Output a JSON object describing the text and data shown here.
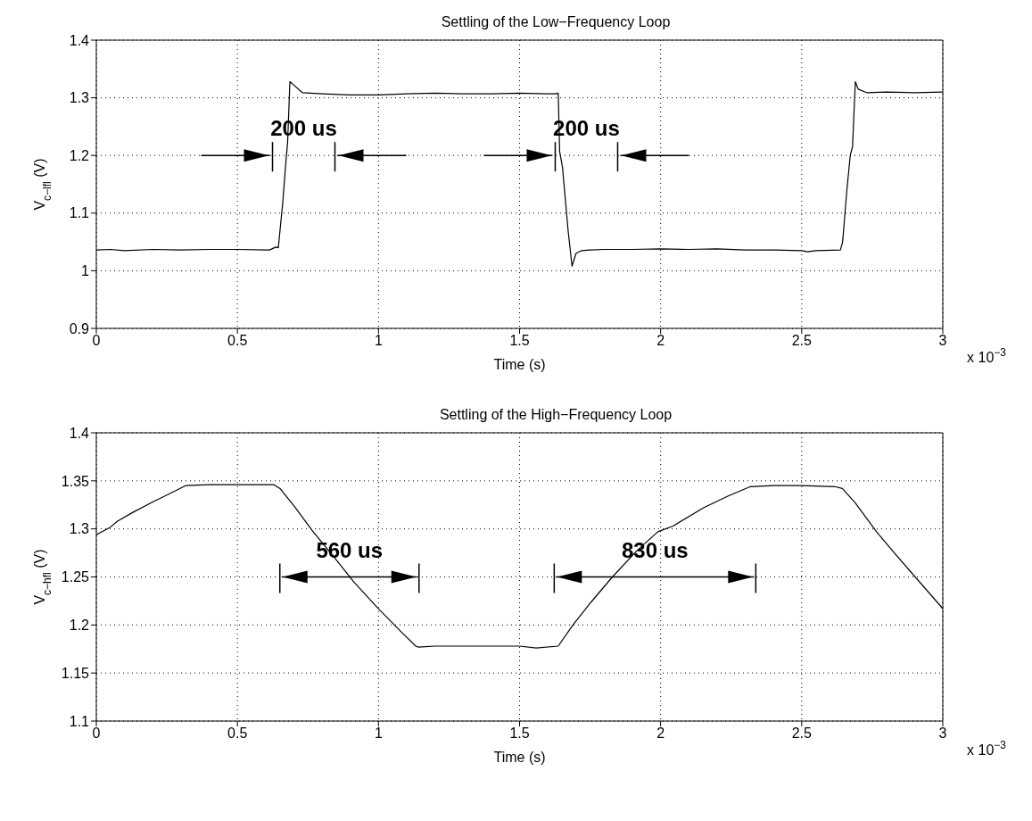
{
  "chart_data": [
    {
      "type": "line",
      "title": "Settling of the Low−Frequency Loop",
      "xlabel": "Time (s)",
      "ylabel": "V$_{c−lfl}$ (V)",
      "color": "#000000",
      "x": [
        0,
        0.05,
        0.1,
        0.2,
        0.3,
        0.4,
        0.5,
        0.6,
        0.614,
        0.636,
        0.645,
        0.661,
        0.672,
        0.678,
        0.686,
        0.7,
        0.73,
        0.8,
        0.9,
        1.0,
        1.1,
        1.2,
        1.3,
        1.4,
        1.5,
        1.6,
        1.628,
        1.637,
        1.642,
        1.652,
        1.672,
        1.686,
        1.7,
        1.72,
        1.75,
        1.8,
        1.9,
        2.0,
        2.1,
        2.2,
        2.3,
        2.4,
        2.5,
        2.52,
        2.55,
        2.637,
        2.645,
        2.66,
        2.672,
        2.68,
        2.69,
        2.7,
        2.73,
        2.8,
        2.9,
        3.0
      ],
      "values": [
        1.036,
        1.037,
        1.035,
        1.037,
        1.036,
        1.037,
        1.037,
        1.036,
        1.036,
        1.041,
        1.04,
        1.12,
        1.19,
        1.223,
        1.328,
        1.322,
        1.309,
        1.307,
        1.305,
        1.305,
        1.307,
        1.308,
        1.307,
        1.307,
        1.308,
        1.307,
        1.307,
        1.308,
        1.207,
        1.18,
        1.07,
        1.008,
        1.03,
        1.035,
        1.036,
        1.037,
        1.037,
        1.038,
        1.037,
        1.038,
        1.036,
        1.036,
        1.035,
        1.033,
        1.035,
        1.036,
        1.05,
        1.14,
        1.2,
        1.215,
        1.328,
        1.315,
        1.309,
        1.31,
        1.309,
        1.31
      ],
      "xlim": [
        0,
        3
      ],
      "xticks": [
        0,
        0.5,
        1,
        1.5,
        2,
        2.5,
        3
      ],
      "ylim": [
        0.9,
        1.4
      ],
      "yticks": [
        0.9,
        1,
        1.1,
        1.2,
        1.3,
        1.4
      ],
      "grid": true,
      "annotations": [
        "200 us",
        "200 us",
        "x 10$^{−3}$"
      ]
    },
    {
      "type": "line",
      "title": "Settling of the High−Frequency Loop",
      "xlabel": "Time (s)",
      "ylabel": "V$_{c−hfl}$ (V)",
      "color": "#000000",
      "x": [
        0,
        0.046,
        0.075,
        0.128,
        0.2,
        0.269,
        0.316,
        0.4,
        0.5,
        0.63,
        0.651,
        0.703,
        0.766,
        0.839,
        0.912,
        0.996,
        1.08,
        1.132,
        1.142,
        1.2,
        1.3,
        1.4,
        1.5,
        1.559,
        1.637,
        1.689,
        1.754,
        1.829,
        1.915,
        1.99,
        2.044,
        2.152,
        2.238,
        2.318,
        2.4,
        2.5,
        2.617,
        2.644,
        2.69,
        2.765,
        2.831,
        3.0
      ],
      "values": [
        1.294,
        1.301,
        1.308,
        1.317,
        1.328,
        1.338,
        1.345,
        1.346,
        1.346,
        1.346,
        1.342,
        1.323,
        1.298,
        1.272,
        1.245,
        1.218,
        1.193,
        1.178,
        1.177,
        1.178,
        1.178,
        1.178,
        1.178,
        1.176,
        1.178,
        1.2,
        1.224,
        1.25,
        1.277,
        1.297,
        1.303,
        1.322,
        1.334,
        1.344,
        1.345,
        1.345,
        1.344,
        1.342,
        1.327,
        1.297,
        1.274,
        1.217
      ],
      "xlim": [
        0,
        3
      ],
      "xticks": [
        0,
        0.5,
        1,
        1.5,
        2,
        2.5,
        3
      ],
      "ylim": [
        1.1,
        1.4
      ],
      "yticks": [
        1.1,
        1.15,
        1.2,
        1.25,
        1.3,
        1.35,
        1.4
      ],
      "grid": true,
      "annotations": [
        "560 us",
        "830 us",
        "x 10$^{−3}$"
      ]
    }
  ]
}
